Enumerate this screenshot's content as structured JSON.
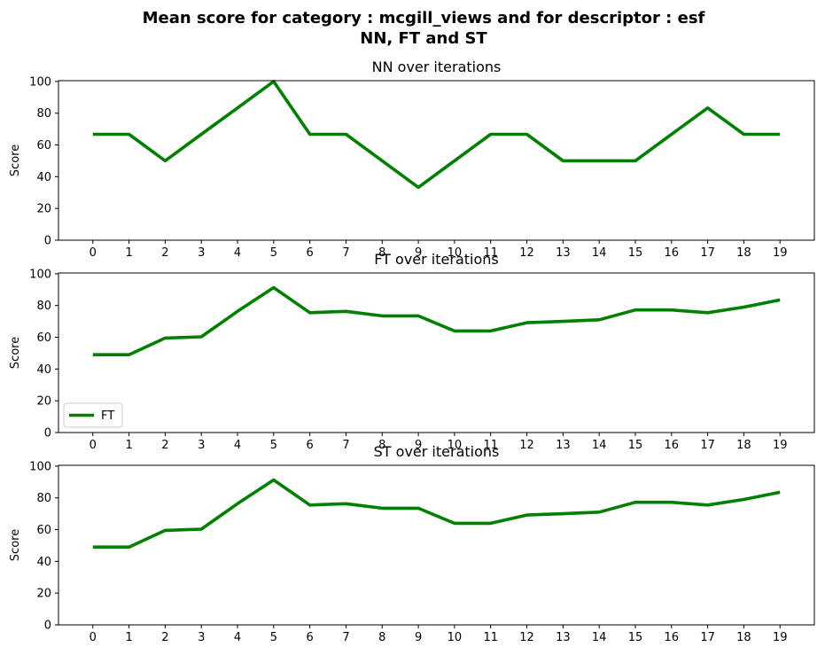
{
  "figure": {
    "title_line1": "Mean score for category : mcgill_views and for descriptor : esf",
    "title_line2": "NN, FT and ST"
  },
  "chart_data": [
    {
      "type": "line",
      "title": "NN over iterations",
      "xlabel": "",
      "ylabel": "Score",
      "x": [
        0,
        1,
        2,
        3,
        4,
        5,
        6,
        7,
        8,
        9,
        10,
        11,
        12,
        13,
        14,
        15,
        16,
        17,
        18,
        19
      ],
      "series": [
        {
          "name": "",
          "color": "#008000",
          "values": [
            66.7,
            66.7,
            50,
            66.7,
            83.3,
            100,
            66.7,
            66.7,
            50,
            33.3,
            50,
            66.7,
            66.7,
            50,
            50,
            50,
            66.7,
            83.3,
            66.7,
            66.7
          ]
        }
      ],
      "ylim": [
        0,
        100
      ],
      "yticks": [
        0,
        20,
        40,
        60,
        80,
        100
      ],
      "legend": "none"
    },
    {
      "type": "line",
      "title": "FT over iterations",
      "xlabel": "",
      "ylabel": "Score",
      "x": [
        0,
        1,
        2,
        3,
        4,
        5,
        6,
        7,
        8,
        9,
        10,
        11,
        12,
        13,
        14,
        15,
        16,
        17,
        18,
        19
      ],
      "series": [
        {
          "name": "FT",
          "color": "#008000",
          "values": [
            49,
            49,
            59.5,
            60.3,
            76.3,
            91.3,
            75.5,
            76.3,
            73.5,
            73.5,
            64,
            64,
            69.2,
            70,
            71,
            77.2,
            77.2,
            75.5,
            79,
            83.5
          ]
        }
      ],
      "ylim": [
        0,
        100
      ],
      "yticks": [
        0,
        20,
        40,
        60,
        80,
        100
      ],
      "legend": "lower-left"
    },
    {
      "type": "line",
      "title": "ST over iterations",
      "xlabel": "",
      "ylabel": "Score",
      "x": [
        0,
        1,
        2,
        3,
        4,
        5,
        6,
        7,
        8,
        9,
        10,
        11,
        12,
        13,
        14,
        15,
        16,
        17,
        18,
        19
      ],
      "series": [
        {
          "name": "",
          "color": "#008000",
          "values": [
            49,
            49,
            59.5,
            60.3,
            76.3,
            91.3,
            75.5,
            76.3,
            73.5,
            73.5,
            64,
            64,
            69.2,
            70,
            71,
            77.2,
            77.2,
            75.5,
            79,
            83.5
          ]
        }
      ],
      "ylim": [
        0,
        100
      ],
      "yticks": [
        0,
        20,
        40,
        60,
        80,
        100
      ],
      "legend": "none"
    }
  ]
}
